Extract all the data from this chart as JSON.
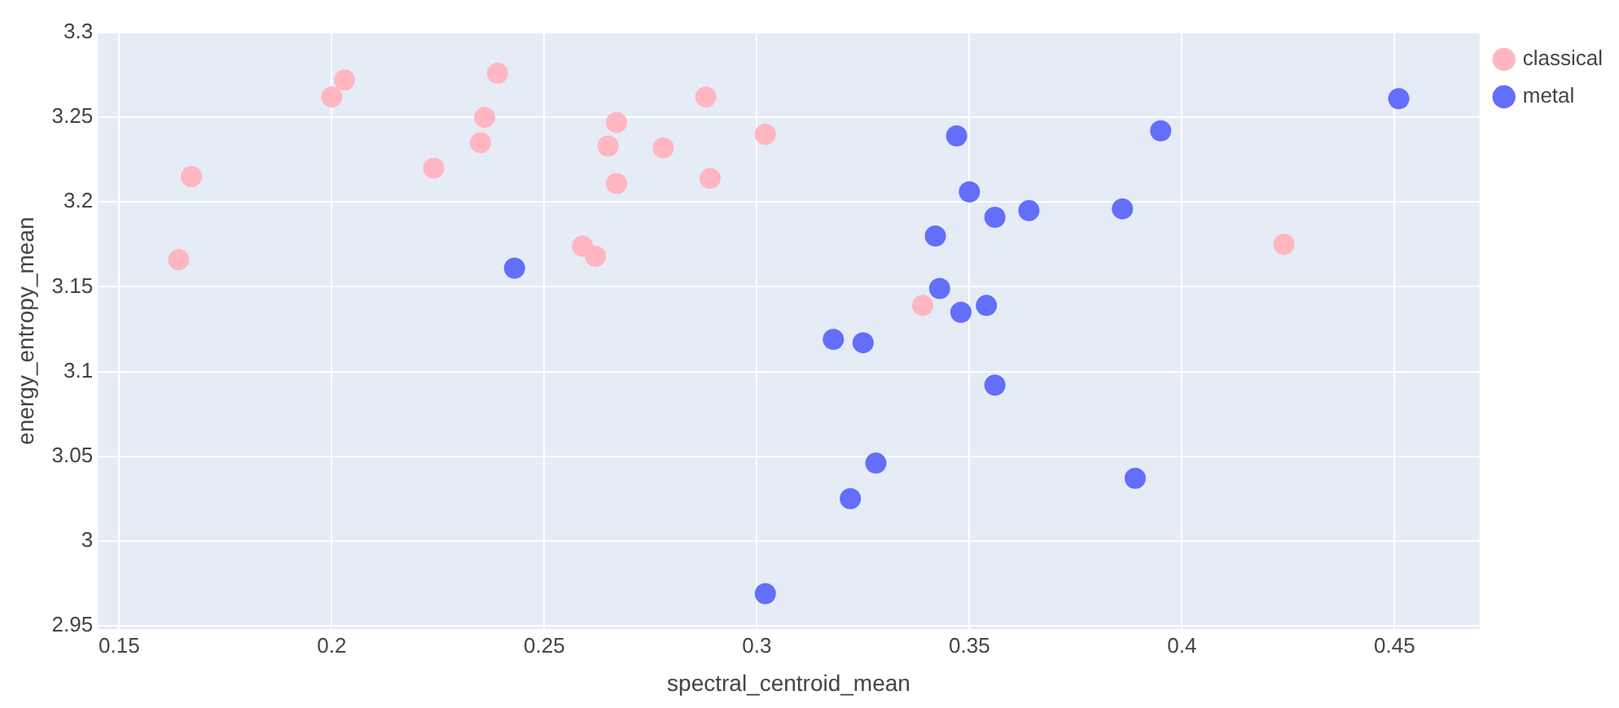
{
  "chart_data": {
    "type": "scatter",
    "xlabel": "spectral_centroid_mean",
    "ylabel": "energy_entropy_mean",
    "xlim": [
      0.145,
      0.47
    ],
    "xticks": [
      0.15,
      0.2,
      0.25,
      0.3,
      0.35,
      0.4,
      0.45
    ],
    "ylim": [
      2.948,
      3.3
    ],
    "yticks": [
      2.95,
      3,
      3.05,
      3.1,
      3.15,
      3.2,
      3.25,
      3.3
    ],
    "grid": true,
    "legend": "top right",
    "marker": "circle",
    "series": [
      {
        "name": "classical",
        "color": "#ffb6c1",
        "x": [
          0.164,
          0.167,
          0.2,
          0.203,
          0.224,
          0.235,
          0.236,
          0.239,
          0.259,
          0.262,
          0.265,
          0.267,
          0.267,
          0.278,
          0.288,
          0.289,
          0.302,
          0.339,
          0.424
        ],
        "values": [
          3.166,
          3.215,
          3.262,
          3.272,
          3.22,
          3.235,
          3.25,
          3.276,
          3.174,
          3.168,
          3.233,
          3.247,
          3.211,
          3.232,
          3.262,
          3.214,
          3.24,
          3.139,
          3.175
        ]
      },
      {
        "name": "metal",
        "color": "#636efa",
        "x": [
          0.243,
          0.302,
          0.318,
          0.322,
          0.325,
          0.328,
          0.342,
          0.343,
          0.347,
          0.348,
          0.35,
          0.354,
          0.356,
          0.356,
          0.364,
          0.386,
          0.389,
          0.395,
          0.451
        ],
        "values": [
          3.161,
          2.969,
          3.119,
          3.025,
          3.117,
          3.046,
          3.18,
          3.149,
          3.239,
          3.135,
          3.206,
          3.139,
          3.191,
          3.092,
          3.195,
          3.196,
          3.037,
          3.242,
          3.261
        ]
      }
    ]
  }
}
